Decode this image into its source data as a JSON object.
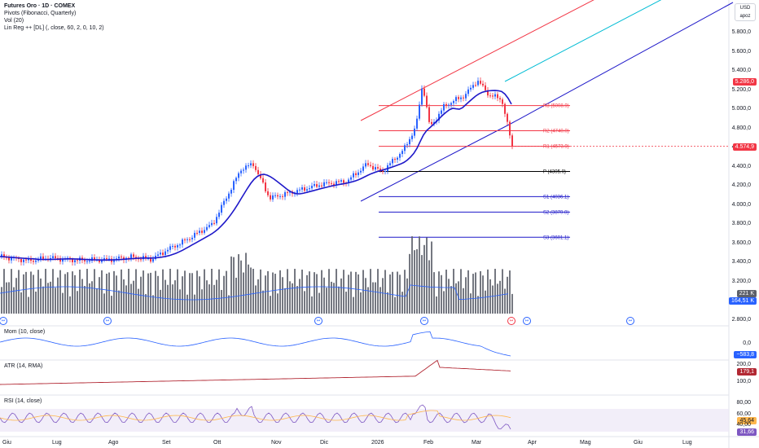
{
  "header": {
    "title": "Futures Oro · 1D · COMEX",
    "indicators": [
      "Pivots (Fibonacci, Quarterly)",
      "Vol (20)",
      "Lin Reg ++ [DL] (, close, 60, 2, 0, 10, 2)"
    ]
  },
  "currency": {
    "code": "USD",
    "sub": "apoz"
  },
  "price_axis": [
    "5.800,0",
    "5.600,0",
    "5.400,0",
    "5.200,0",
    "5.000,0",
    "4.800,0",
    "4.600,0",
    "4.400,0",
    "4.200,0",
    "4.000,0",
    "3.800,0",
    "3.600,0",
    "3.400,0",
    "3.200,0",
    "3.000,0",
    "2.800,0"
  ],
  "price_tags": {
    "upper": "5.286,0",
    "last": "4.574,9",
    "vol1": "221 K",
    "vol2": "164,51 K"
  },
  "pivots": [
    {
      "label": "R3 (5008.9)",
      "value": 5008.9,
      "color": "#f23645"
    },
    {
      "label": "R2 (4740.0)",
      "value": 4740.0,
      "color": "#f23645"
    },
    {
      "label": "R1 (4573.9)",
      "value": 4573.9,
      "color": "#f23645"
    },
    {
      "label": "P (4305.0)",
      "value": 4305.0,
      "color": "#000000"
    },
    {
      "label": "S1 (4036.1)",
      "value": 4036.1,
      "color": "#1e18c9"
    },
    {
      "label": "S2 (3870.0)",
      "value": 3870.0,
      "color": "#1e18c9"
    },
    {
      "label": "S3 (3601.1)",
      "value": 3601.1,
      "color": "#1e18c9"
    }
  ],
  "panes": {
    "mom": {
      "label": "Mom (10, close)",
      "axis": [
        "0,0"
      ],
      "tag": "−583,8"
    },
    "atr": {
      "label": "ATR (14, RMA)",
      "axis": [
        "200,0",
        "100,0"
      ],
      "tag": "179,1"
    },
    "rsi": {
      "label": "RSI (14, close)",
      "axis": [
        "80,00",
        "60,00",
        "40,00",
        "20,00"
      ],
      "tag1": "45,64",
      "tag2": "31,66"
    }
  },
  "x_axis": [
    "Giu",
    "Lug",
    "Ago",
    "Set",
    "Ott",
    "Nov",
    "Dic",
    "2026",
    "Feb",
    "Mar",
    "Apr",
    "Mag",
    "Giu",
    "Lug"
  ],
  "colors": {
    "up": "#2962ff",
    "down": "#f23645",
    "ma": "#1e18c9",
    "channel_top": "#f23645",
    "channel_mid": "#00bcd4",
    "channel_bot": "#1e18c9",
    "vol": "#5d606b",
    "mom": "#2962ff",
    "atr": "#b22833",
    "rsi": "#7e57c2",
    "rsi_ma": "#ffb74d"
  },
  "chart_data": {
    "type": "candlestick",
    "title": "Futures Oro · 1D · COMEX",
    "x_categories": [
      "Giu",
      "Lug",
      "Ago",
      "Set",
      "Ott",
      "Nov",
      "Dic",
      "2026",
      "Feb",
      "Mar"
    ],
    "monthly_close": [
      3390,
      3360,
      3420,
      3720,
      4300,
      4080,
      4280,
      4420,
      5000,
      4575
    ],
    "last_price": 4574.9,
    "ylim": [
      2800,
      5900
    ],
    "pivots_quarterly": {
      "R3": 5008.9,
      "R2": 4740.0,
      "R1": 4573.9,
      "P": 4305.0,
      "S1": 4036.1,
      "S2": 3870.0,
      "S3": 3601.1
    },
    "volume_last": "221 K",
    "volume_ma": "164,51 K",
    "momentum_last": -583.8,
    "atr_last": 179.1,
    "rsi_last": 31.66,
    "rsi_ma_last": 45.64
  }
}
